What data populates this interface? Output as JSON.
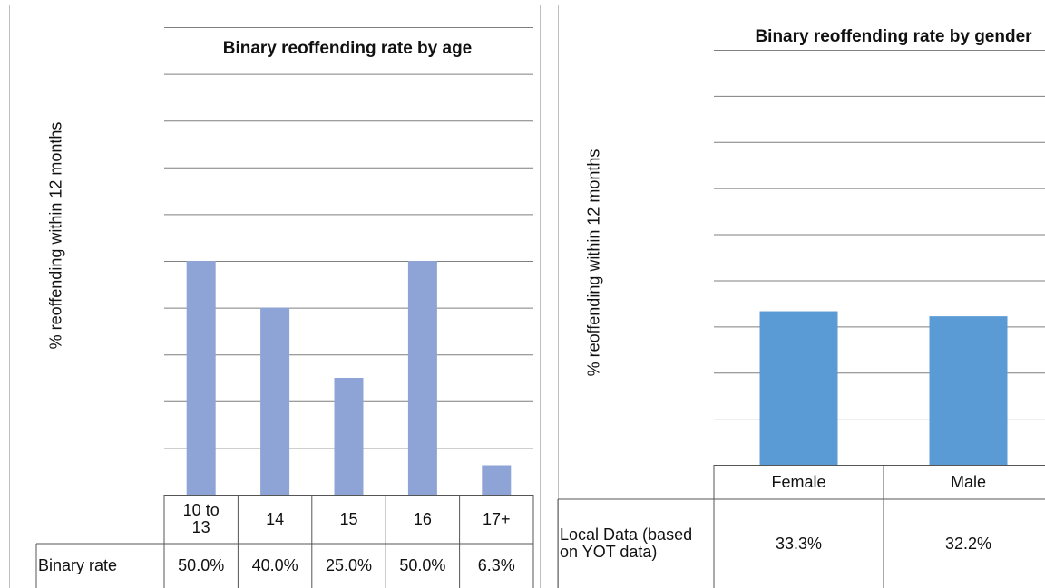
{
  "chart_data": [
    {
      "type": "bar",
      "title": "Binary reoffending rate by age",
      "y_label": "% reoffending within 12 months",
      "categories": [
        "10 to 13",
        "14",
        "15",
        "16",
        "17+"
      ],
      "series": [
        {
          "name": "Binary rate",
          "color": "#8fa4d6",
          "values": [
            50,
            40,
            25,
            50,
            6.3
          ],
          "value_labels": [
            "50.0%",
            "40.0%",
            "25.0%",
            "50.0%",
            "6.3%"
          ]
        }
      ],
      "ylim": [
        0,
        100
      ],
      "yticks": [
        0,
        10,
        20,
        30,
        40,
        50,
        60,
        70,
        80,
        90,
        100
      ],
      "grid": true
    },
    {
      "type": "bar",
      "title": "Binary reoffending rate by gender",
      "y_label": "% reoffending within 12 months",
      "categories": [
        "Female",
        "Male"
      ],
      "series": [
        {
          "name": "Local Data (based on YOT data)",
          "color": "#5b9bd5",
          "values": [
            33.3,
            32.2
          ],
          "value_labels": [
            "33.3%",
            "32.2%"
          ]
        }
      ],
      "ylim": [
        0,
        90
      ],
      "yticks": [
        0,
        10,
        20,
        30,
        40,
        50,
        60,
        70,
        80,
        90
      ],
      "grid": true
    }
  ]
}
